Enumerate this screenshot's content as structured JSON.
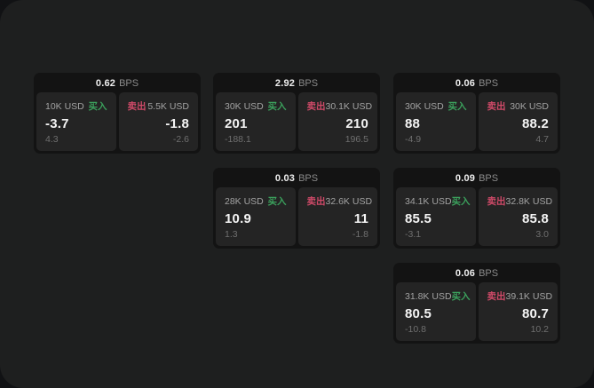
{
  "window": {
    "bg_outer": "#111214",
    "bg_surface": "#1e1f1f",
    "card_bg": "#131313",
    "panel_bg": "#242424"
  },
  "labels": {
    "bps": "BPS",
    "buy": "买入",
    "sell": "卖出"
  },
  "colors": {
    "buy": "#3ba05c",
    "sell": "#cf4a68"
  },
  "cards": [
    {
      "bps": "0.62",
      "buy": {
        "size": "10K USD",
        "price": "-3.7",
        "delta": "4.3"
      },
      "sell": {
        "size": "5.5K USD",
        "price": "-1.8",
        "delta": "-2.6"
      }
    },
    {
      "bps": "2.92",
      "buy": {
        "size": "30K USD",
        "price": "201",
        "delta": "-188.1"
      },
      "sell": {
        "size": "30.1K USD",
        "price": "210",
        "delta": "196.5"
      }
    },
    {
      "bps": "0.06",
      "buy": {
        "size": "30K USD",
        "price": "88",
        "delta": "-4.9"
      },
      "sell": {
        "size": "30K USD",
        "price": "88.2",
        "delta": "4.7"
      }
    },
    {
      "bps": "0.03",
      "buy": {
        "size": "28K USD",
        "price": "10.9",
        "delta": "1.3"
      },
      "sell": {
        "size": "32.6K USD",
        "price": "11",
        "delta": "-1.8"
      }
    },
    {
      "bps": "0.09",
      "buy": {
        "size": "34.1K USD",
        "price": "85.5",
        "delta": "-3.1"
      },
      "sell": {
        "size": "32.8K USD",
        "price": "85.8",
        "delta": "3.0"
      }
    },
    {
      "bps": "0.06",
      "buy": {
        "size": "31.8K USD",
        "price": "80.5",
        "delta": "-10.8"
      },
      "sell": {
        "size": "39.1K USD",
        "price": "80.7",
        "delta": "10.2"
      }
    }
  ]
}
